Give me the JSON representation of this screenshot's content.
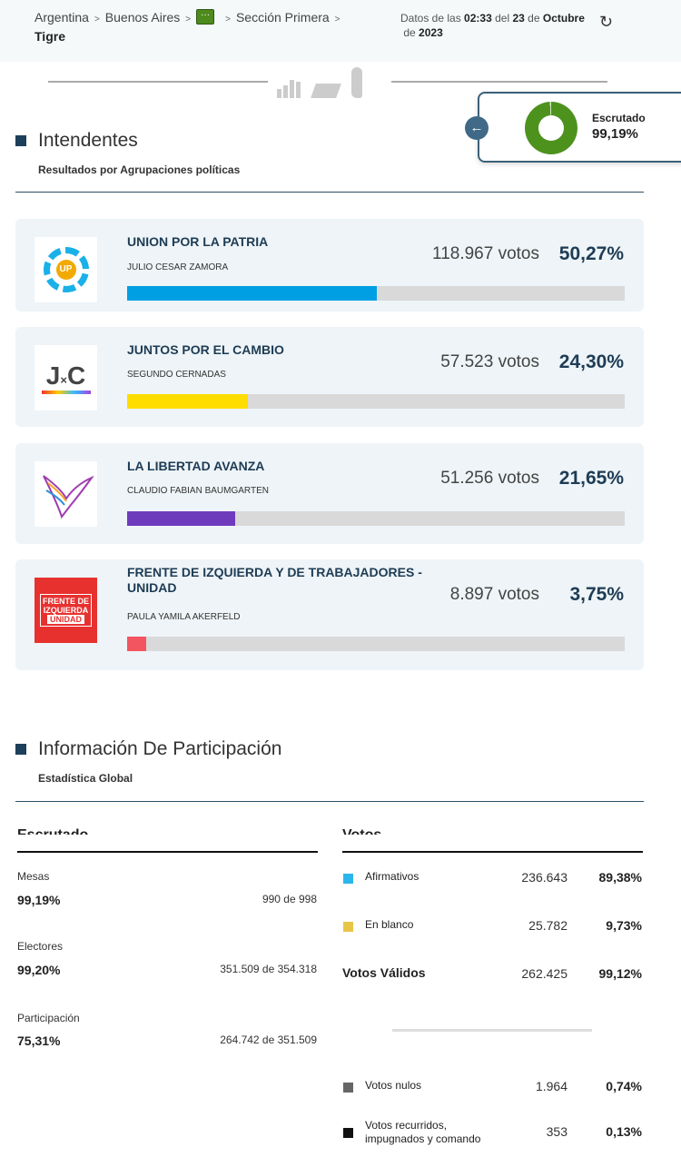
{
  "breadcrumb": {
    "items": [
      "Argentina",
      "Buenos Aires",
      "Sección Primera"
    ],
    "more_icon": "ellipsis",
    "current": "Tigre"
  },
  "update": {
    "prefix": "Datos de las",
    "time": "02:33",
    "del": "del",
    "day": "23",
    "de": "de",
    "month": "Octubre",
    "de2": "de",
    "year": "2023"
  },
  "escrutado_card": {
    "label": "Escrutado",
    "value": "99,19%",
    "fraction": 0.9919
  },
  "intendentes": {
    "title": "Intendentes",
    "subtitle": "Resultados por Agrupaciones políticas",
    "parties": [
      {
        "name": "UNION POR LA PATRIA",
        "candidate": "JULIO CESAR ZAMORA",
        "votes": "118.967 votos",
        "pct": "50,27%",
        "value": 50.27,
        "color": "#009fe3",
        "logo": "UP"
      },
      {
        "name": "JUNTOS POR EL CAMBIO",
        "candidate": "SEGUNDO CERNADAS",
        "votes": "57.523 votos",
        "pct": "24,30%",
        "value": 24.3,
        "color": "#ffdd00",
        "logo": "J×C"
      },
      {
        "name": "LA LIBERTAD AVANZA",
        "candidate": "CLAUDIO FABIAN BAUMGARTEN",
        "votes": "51.256 votos",
        "pct": "21,65%",
        "value": 21.65,
        "color": "#6f3bbd",
        "logo": "eagle"
      },
      {
        "name": "FRENTE DE IZQUIERDA Y DE TRABAJADORES - UNIDAD",
        "candidate": "PAULA YAMILA AKERFELD",
        "votes": "8.897 votos",
        "pct": "3,75%",
        "value": 3.75,
        "color": "#f2555f",
        "logo": "FRENTE DE IZQUIERDA UNIDAD"
      }
    ]
  },
  "participacion": {
    "title": "Información De Participación",
    "subtitle": "Estadística Global",
    "escrutado": {
      "heading": "Escrutado",
      "rows": [
        {
          "label": "Mesas",
          "pct": "99,19%",
          "detail": "990 de 998"
        },
        {
          "label": "Electores",
          "pct": "99,20%",
          "detail": "351.509 de 354.318"
        },
        {
          "label": "Participación",
          "pct": "75,31%",
          "detail": "264.742 de 351.509"
        }
      ]
    },
    "votos": {
      "heading": "Votos",
      "rows": [
        {
          "label": "Afirmativos",
          "num": "236.643",
          "pct": "89,38%",
          "color": "#29b6ea"
        },
        {
          "label": "En blanco",
          "num": "25.782",
          "pct": "9,73%",
          "color": "#e8c547"
        },
        {
          "label": "Votos Válidos",
          "num": "262.425",
          "pct": "99,12%"
        },
        {
          "label": "Votos nulos",
          "num": "1.964",
          "pct": "0,74%",
          "color": "#666666"
        },
        {
          "label": "Votos recurridos, impugnados y comando",
          "num": "353",
          "pct": "0,13%",
          "color": "#111111"
        }
      ]
    }
  }
}
